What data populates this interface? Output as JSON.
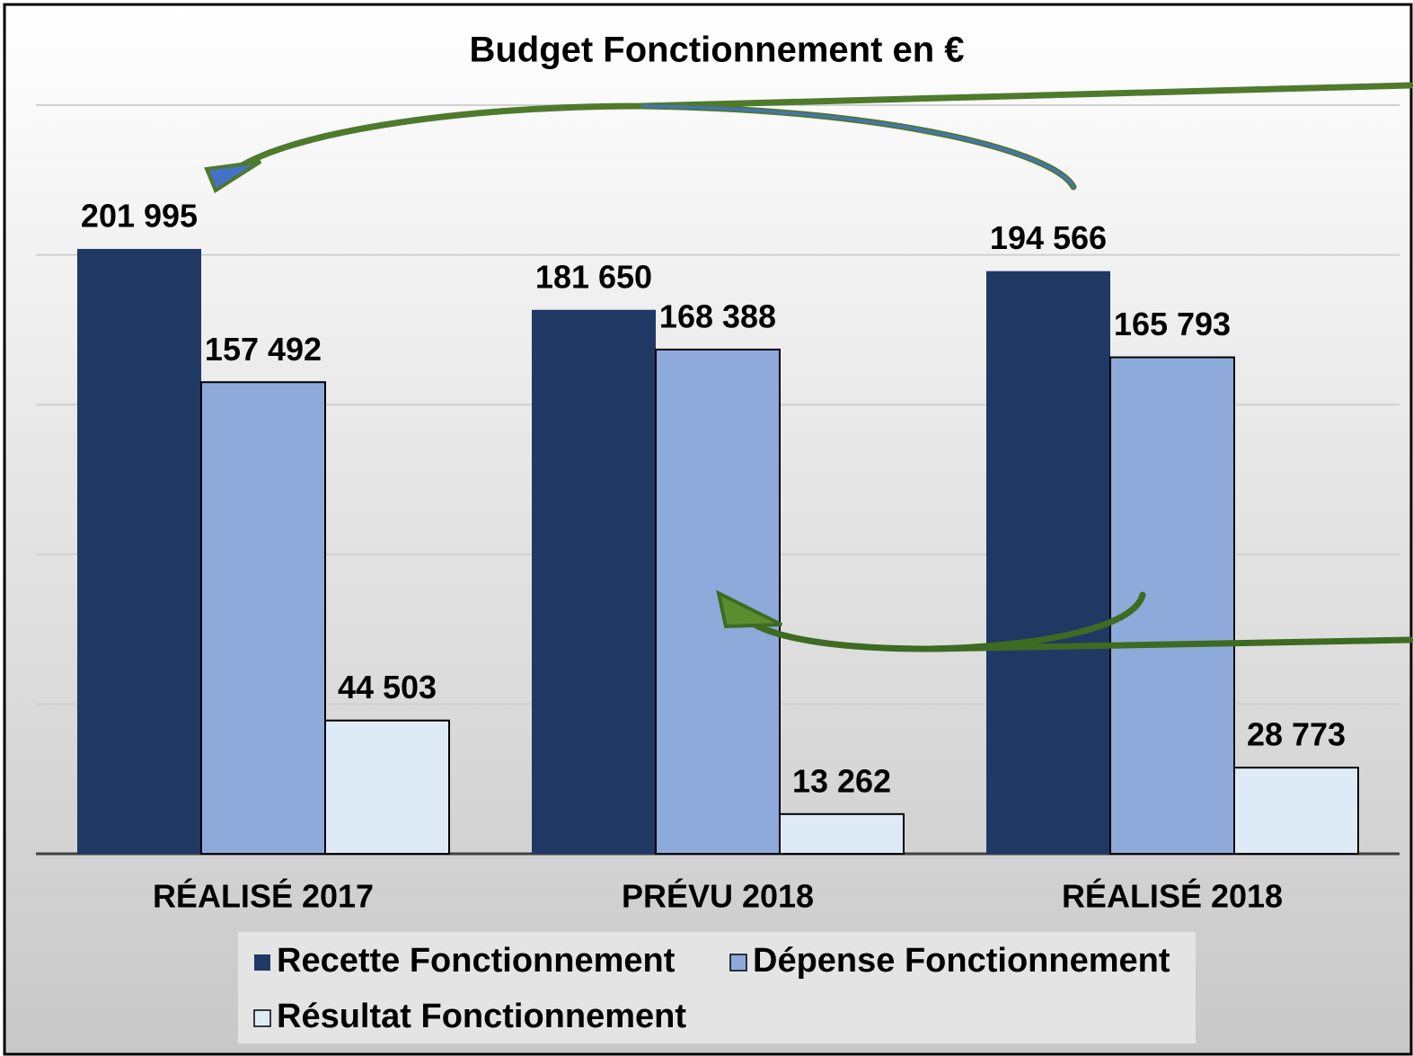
{
  "chart_data": {
    "type": "bar",
    "title": "Budget Fonctionnement  en €",
    "categories": [
      "RÉALISÉ 2017",
      "PRÉVU 2018",
      "RÉALISÉ 2018"
    ],
    "series": [
      {
        "name": "Recette Fonctionnement",
        "color": "#203864",
        "values": [
          201995,
          181650,
          194566
        ],
        "value_labels": [
          "201 995",
          "181 650",
          "194 566"
        ]
      },
      {
        "name": "Dépense Fonctionnement",
        "color": "#8eaadb",
        "values": [
          157492,
          168388,
          165793
        ],
        "value_labels": [
          "157 492",
          "168 388",
          "165 793"
        ]
      },
      {
        "name": "Résultat Fonctionnement",
        "color": "#deebf7",
        "values": [
          44503,
          13262,
          28773
        ],
        "value_labels": [
          "44 503",
          "13 262",
          "28 773"
        ]
      }
    ],
    "ylim": [
      0,
      250000
    ],
    "yticks": [
      0,
      50000,
      100000,
      150000,
      200000,
      250000
    ],
    "grid": true,
    "legend": "bottom"
  }
}
